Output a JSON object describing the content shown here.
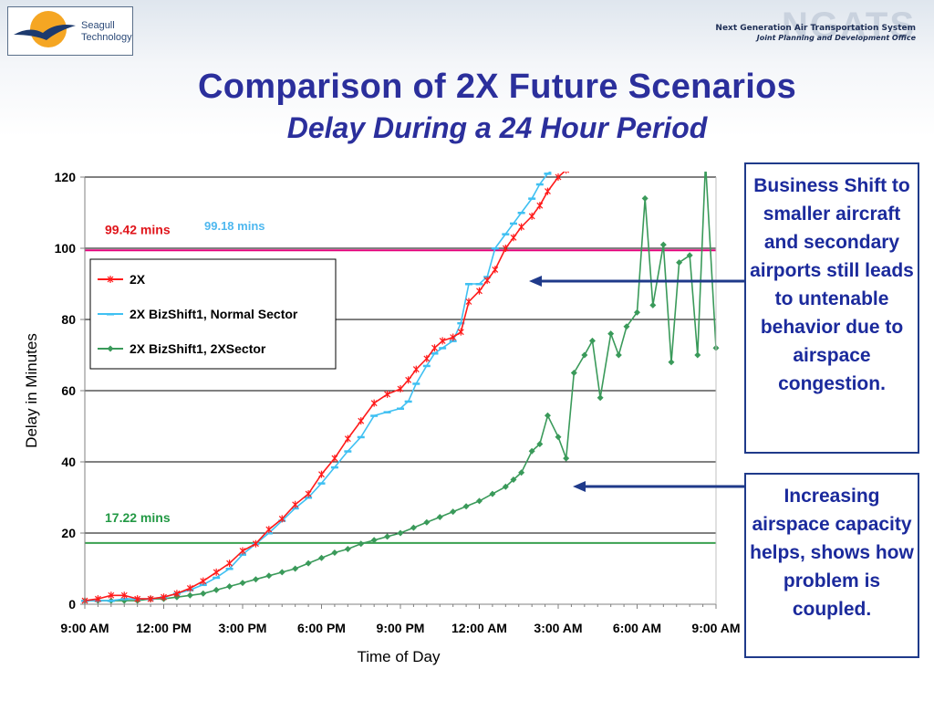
{
  "header": {
    "logo_line1": "Seagull",
    "logo_line2": "Technology",
    "ngats_mark": "NGATS",
    "ngats_line1": "Next Generation Air Transportation System",
    "ngats_line2": "Joint Planning and Development Office"
  },
  "title": "Comparison of 2X Future Scenarios",
  "subtitle": "Delay During a 24 Hour Period",
  "callouts": {
    "top": "Business Shift to smaller aircraft and secondary airports still leads to untenable behavior due to airspace congestion.",
    "bottom": "Increasing airspace capacity helps,  shows how problem is coupled."
  },
  "chart_data": {
    "type": "line",
    "xlabel": "Time of Day",
    "ylabel": "Delay in Minutes",
    "ylim": [
      0,
      120
    ],
    "yticks": [
      0,
      20,
      40,
      60,
      80,
      100,
      120
    ],
    "xlim": [
      0,
      24
    ],
    "xticks": [
      0,
      3,
      6,
      9,
      12,
      15,
      18,
      21,
      24
    ],
    "xtick_labels": [
      "9:00 AM",
      "12:00 PM",
      "3:00 PM",
      "6:00 PM",
      "9:00 PM",
      "12:00 AM",
      "3:00 AM",
      "6:00 AM",
      "9:00 AM"
    ],
    "grid": "horizontal",
    "legend_position": "top-left",
    "reference_lines": [
      {
        "y": 99.42,
        "label": "99.42 mins",
        "color": "#e2007a",
        "label_color": "#e0151b"
      },
      {
        "y": 17.22,
        "label": "17.22 mins",
        "color": "#3aa050",
        "label_color": "#229944"
      }
    ],
    "annotations": [
      {
        "text": "99.18 mins",
        "color": "#4fb8ef"
      }
    ],
    "series": [
      {
        "name": "2X",
        "color": "#ff1a1a",
        "marker": "star",
        "x": [
          0,
          0.5,
          1,
          1.5,
          2,
          2.5,
          3,
          3.5,
          4,
          4.5,
          5,
          5.5,
          6,
          6.5,
          7,
          7.5,
          8,
          8.5,
          9,
          9.5,
          10,
          10.5,
          11,
          11.5,
          12,
          12.3,
          12.6,
          13,
          13.3,
          13.6,
          14,
          14.3,
          14.6,
          15,
          15.3,
          15.6,
          16,
          16.3,
          16.6,
          17,
          17.3,
          17.6,
          18,
          18.3
        ],
        "y": [
          1,
          1.5,
          2.5,
          2.5,
          1.5,
          1.5,
          2,
          3,
          4.5,
          6.5,
          9,
          11.5,
          15,
          17,
          21,
          24,
          28,
          31,
          36.5,
          41,
          46.5,
          51.5,
          56.5,
          59,
          60.5,
          63,
          66,
          69,
          72,
          74,
          75,
          76.5,
          85,
          88,
          91,
          94,
          100,
          103,
          106,
          109,
          112,
          116,
          120,
          122
        ]
      },
      {
        "name": "2X BizShift1, Normal Sector",
        "color": "#3fc0f2",
        "marker": "dash",
        "x": [
          0,
          0.5,
          1,
          1.5,
          2,
          2.5,
          3,
          3.5,
          4,
          4.5,
          5,
          5.5,
          6,
          6.5,
          7,
          7.5,
          8,
          8.5,
          9,
          9.5,
          10,
          10.5,
          11,
          11.5,
          12,
          12.3,
          12.6,
          13,
          13.3,
          13.6,
          14,
          14.3,
          14.6,
          15,
          15.3,
          15.6,
          16,
          16.3,
          16.6,
          17,
          17.3,
          17.6,
          18,
          18.3
        ],
        "y": [
          1,
          1,
          1,
          1.5,
          1.5,
          1.5,
          2,
          3,
          4,
          5.5,
          7.5,
          10,
          14,
          17,
          20,
          23.5,
          27,
          30,
          34,
          38.5,
          43,
          47,
          53,
          54,
          55,
          57,
          62,
          67,
          70.5,
          72,
          74,
          79,
          90,
          90,
          92,
          100,
          104,
          107,
          110,
          114,
          118,
          121,
          123,
          124
        ]
      },
      {
        "name": "2X BizShift1, 2XSector",
        "color": "#3a9a5a",
        "marker": "diamond",
        "x": [
          0,
          0.5,
          1,
          1.5,
          2,
          2.5,
          3,
          3.5,
          4,
          4.5,
          5,
          5.5,
          6,
          6.5,
          7,
          7.5,
          8,
          8.5,
          9,
          9.5,
          10,
          10.5,
          11,
          11.5,
          12,
          12.5,
          13,
          13.5,
          14,
          14.5,
          15,
          15.5,
          16,
          16.3,
          16.6,
          17,
          17.3,
          17.6,
          18,
          18.3,
          18.6,
          19,
          19.3,
          19.6,
          20,
          20.3,
          20.6,
          21,
          21.3,
          21.6,
          22,
          22.3,
          22.6,
          23,
          23.3,
          23.6,
          24
        ],
        "y": [
          1,
          1,
          1,
          1,
          1,
          1.5,
          1.5,
          2,
          2.5,
          3,
          4,
          5,
          6,
          7,
          8,
          9,
          10,
          11.5,
          13,
          14.5,
          15.5,
          17,
          18,
          19,
          20,
          21.5,
          23,
          24.5,
          26,
          27.5,
          29,
          31,
          33,
          35,
          37,
          43,
          45,
          53,
          47,
          41,
          65,
          70,
          74,
          58,
          76,
          70,
          78,
          82,
          114,
          84,
          101,
          68,
          96,
          98,
          70,
          124,
          72
        ]
      }
    ]
  }
}
